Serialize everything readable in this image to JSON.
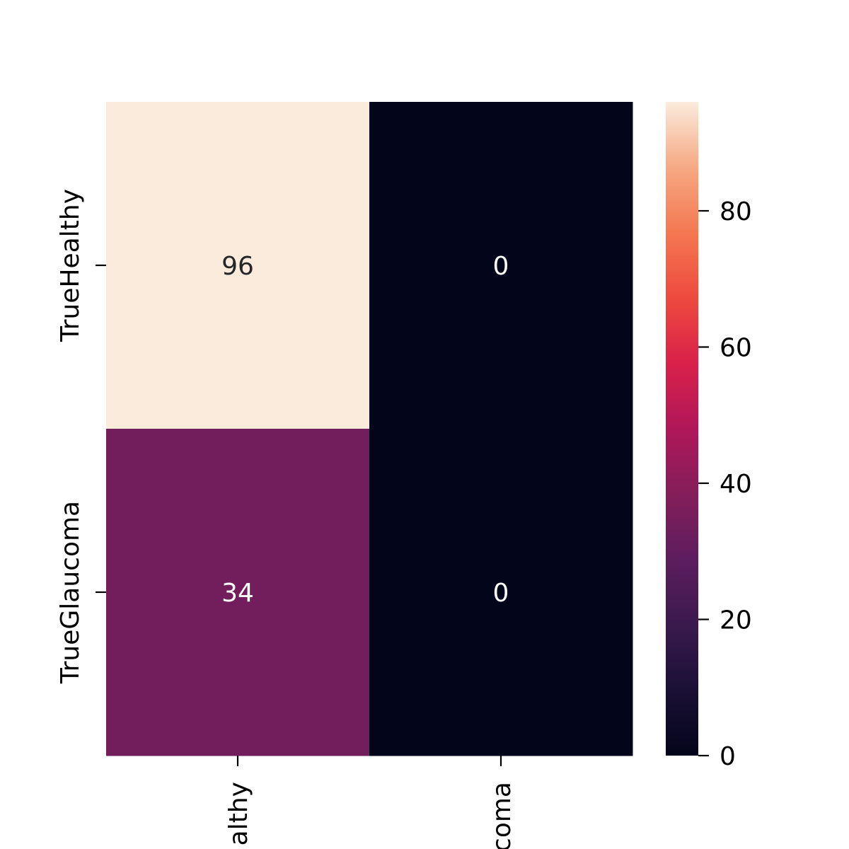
{
  "chart_data": {
    "type": "heatmap",
    "rows": [
      "TrueHealthy",
      "TrueGlaucoma"
    ],
    "columns": [
      "PredictedHealthy",
      "PredictedGlaucoma"
    ],
    "values": [
      [
        96,
        0
      ],
      [
        34,
        0
      ]
    ],
    "annotations": [
      [
        "96",
        "0"
      ],
      [
        "34",
        "0"
      ]
    ],
    "x_tick_labels_visible": [
      "althy",
      "coma"
    ],
    "colormap": "rocket",
    "colorbar": {
      "min": 0,
      "max": 96,
      "ticks": [
        0,
        20,
        40,
        60,
        80
      ],
      "tick_labels": [
        "0",
        "20",
        "40",
        "60",
        "80"
      ]
    },
    "grid": false,
    "legend": "colorbar-right"
  }
}
